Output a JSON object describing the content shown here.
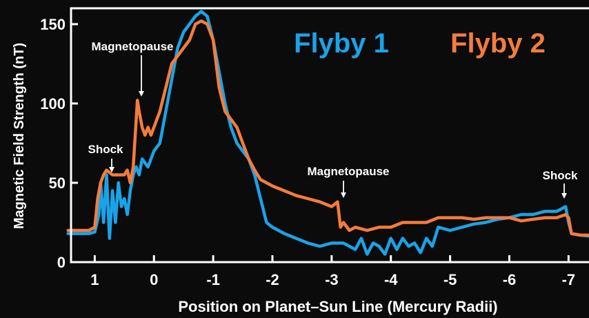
{
  "chart_data": {
    "type": "line",
    "title": "",
    "xlabel": "Position on Planet–Sun Line (Mercury Radii)",
    "ylabel": "Magnetic Field Strength (nT)",
    "xlim": [
      1.4,
      -7.45
    ],
    "ylim": [
      0,
      160
    ],
    "x_ticks": [
      1,
      0,
      -1,
      -2,
      -3,
      -4,
      -5,
      -6,
      -7
    ],
    "x_tick_labels": [
      "1",
      "0",
      "-1",
      "-2",
      "-3",
      "-4",
      "-5",
      "-6",
      "-7"
    ],
    "y_ticks": [
      0,
      50,
      100,
      150
    ],
    "y_tick_labels": [
      "0",
      "50",
      "100",
      "150"
    ],
    "grid": false,
    "legend_placement": "top-right",
    "series": [
      {
        "name": "Flyby 1",
        "color": "#1aa3e8",
        "x": [
          1.45,
          1.3,
          1.1,
          1.0,
          0.93,
          0.9,
          0.85,
          0.8,
          0.75,
          0.7,
          0.65,
          0.6,
          0.55,
          0.5,
          0.45,
          0.4,
          0.35,
          0.3,
          0.25,
          0.2,
          0.1,
          0.0,
          -0.1,
          -0.2,
          -0.3,
          -0.4,
          -0.5,
          -0.6,
          -0.7,
          -0.8,
          -0.9,
          -1.0,
          -1.1,
          -1.2,
          -1.3,
          -1.4,
          -1.5,
          -1.6,
          -1.7,
          -1.8,
          -1.9,
          -2.0,
          -2.1,
          -2.2,
          -2.4,
          -2.6,
          -2.8,
          -3.0,
          -3.2,
          -3.4,
          -3.5,
          -3.6,
          -3.7,
          -3.8,
          -3.9,
          -4.0,
          -4.1,
          -4.2,
          -4.3,
          -4.4,
          -4.5,
          -4.6,
          -4.7,
          -4.8,
          -5.0,
          -5.2,
          -5.4,
          -5.6,
          -5.8,
          -6.0,
          -6.2,
          -6.4,
          -6.6,
          -6.8,
          -6.95,
          -7.0,
          -7.05,
          -7.2,
          -7.45
        ],
        "y": [
          18,
          18,
          18,
          19,
          30,
          50,
          25,
          55,
          15,
          45,
          25,
          50,
          35,
          40,
          30,
          45,
          55,
          60,
          55,
          65,
          60,
          70,
          75,
          95,
          115,
          135,
          145,
          150,
          155,
          158,
          155,
          140,
          120,
          100,
          85,
          75,
          70,
          65,
          55,
          40,
          25,
          22,
          20,
          18,
          15,
          12,
          10,
          12,
          12,
          8,
          15,
          5,
          12,
          10,
          5,
          15,
          8,
          15,
          10,
          12,
          6,
          15,
          10,
          22,
          20,
          22,
          24,
          25,
          27,
          28,
          30,
          30,
          32,
          32,
          35,
          25,
          18,
          17,
          16
        ]
      },
      {
        "name": "Flyby 2",
        "color": "#f47c3c",
        "x": [
          1.45,
          1.3,
          1.1,
          1.0,
          0.95,
          0.9,
          0.85,
          0.8,
          0.7,
          0.6,
          0.5,
          0.45,
          0.4,
          0.35,
          0.3,
          0.28,
          0.25,
          0.2,
          0.15,
          0.1,
          0.05,
          0.0,
          -0.1,
          -0.2,
          -0.3,
          -0.4,
          -0.5,
          -0.6,
          -0.7,
          -0.8,
          -0.9,
          -1.0,
          -1.05,
          -1.1,
          -1.2,
          -1.3,
          -1.4,
          -1.5,
          -1.6,
          -1.7,
          -1.8,
          -2.0,
          -2.2,
          -2.4,
          -2.6,
          -2.8,
          -3.0,
          -3.1,
          -3.15,
          -3.2,
          -3.3,
          -3.4,
          -3.6,
          -3.8,
          -4.0,
          -4.2,
          -4.4,
          -4.6,
          -4.8,
          -5.0,
          -5.2,
          -5.4,
          -5.6,
          -5.8,
          -6.0,
          -6.2,
          -6.4,
          -6.6,
          -6.8,
          -6.95,
          -7.0,
          -7.05,
          -7.2,
          -7.45
        ],
        "y": [
          20,
          20,
          20,
          22,
          40,
          50,
          55,
          58,
          55,
          55,
          55,
          58,
          50,
          60,
          90,
          102,
          95,
          85,
          80,
          85,
          80,
          85,
          95,
          110,
          125,
          130,
          135,
          140,
          150,
          152,
          150,
          140,
          125,
          110,
          95,
          90,
          85,
          75,
          65,
          58,
          52,
          48,
          45,
          42,
          40,
          38,
          35,
          38,
          22,
          25,
          20,
          22,
          20,
          22,
          22,
          25,
          25,
          25,
          28,
          28,
          28,
          27,
          28,
          28,
          28,
          26,
          27,
          28,
          28,
          30,
          28,
          18,
          17,
          17
        ]
      }
    ],
    "annotations": [
      {
        "text": "Magnetopause",
        "x": 0.3,
        "y": 102
      },
      {
        "text": "Shock",
        "x": 0.85,
        "y": 55
      },
      {
        "text": "Magnetopause",
        "x": -3.15,
        "y": 40
      },
      {
        "text": "Shock",
        "x": -7.0,
        "y": 36
      }
    ]
  }
}
